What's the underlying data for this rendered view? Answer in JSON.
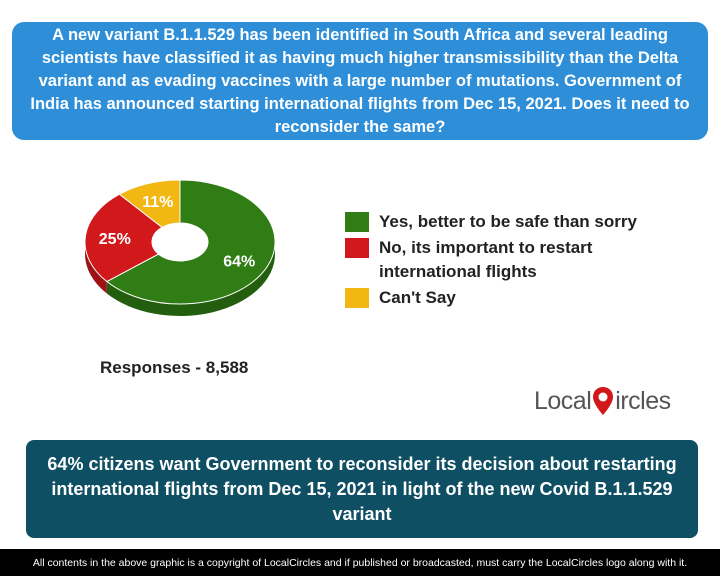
{
  "question": "A new variant B.1.1.529 has been identified in South Africa and several leading scientists have classified it as having much higher transmissibility than the Delta variant and as evading vaccines with a large number of mutations. Government of India has announced starting international flights from Dec 15, 2021. Does it need to reconsider the same?",
  "chart_data": {
    "type": "pie",
    "donut": true,
    "slices": [
      {
        "label": "Yes, better to be safe than sorry",
        "value": 64,
        "display": "64%",
        "color": "#2f7d14"
      },
      {
        "label": "No, its important to restart international flights",
        "value": 25,
        "display": "25%",
        "color": "#d1191c"
      },
      {
        "label": "Can't Say",
        "value": 11,
        "display": "11%",
        "color": "#f2b713"
      }
    ]
  },
  "responses": "Responses - 8,588",
  "logo": {
    "text_left": "Local",
    "text_right": "ircles",
    "pin_color": "#d1191c"
  },
  "summary": "64% citizens want Government to reconsider its decision about restarting international flights from Dec 15, 2021 in light of the new Covid B.1.1.529 variant",
  "footer": "All contents in the above graphic is a copyright of LocalCircles and if published or broadcasted, must carry the LocalCircles logo along with it."
}
